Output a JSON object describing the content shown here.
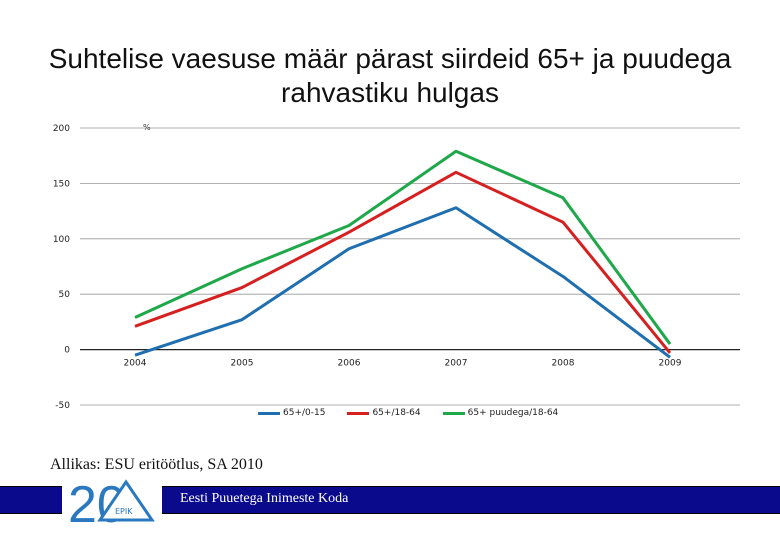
{
  "slide": {
    "title": "Suhtelise vaesuse määr pärast siirdeid 65+ ja puudega rahvastiku hulgas",
    "source": "Allikas: ESU eritöötlus, SA 2010",
    "footer": "Eesti Puuetega Inimeste Koda",
    "logo_number": "20",
    "logo_text": "EPIK"
  },
  "colors": {
    "series1": "#1f6fb0",
    "series2": "#d62020",
    "series3": "#1ea84a",
    "footer_bar": "#0a0a8c"
  },
  "chart_data": {
    "type": "line",
    "title": "",
    "xlabel": "",
    "ylabel": "%",
    "x": [
      "2004",
      "2005",
      "2006",
      "2007",
      "2008",
      "2009"
    ],
    "ylim": [
      -50,
      200
    ],
    "yticks": [
      -50,
      0,
      50,
      100,
      150,
      200
    ],
    "grid": true,
    "legend": "bottom",
    "series": [
      {
        "name": "65+/0-15",
        "values": [
          -5,
          27,
          91,
          128,
          66,
          -7
        ]
      },
      {
        "name": "65+/18-64",
        "values": [
          21,
          56,
          106,
          160,
          115,
          -3
        ]
      },
      {
        "name": "65+ puudega/18-64",
        "values": [
          29,
          73,
          112,
          179,
          137,
          5
        ]
      }
    ]
  }
}
